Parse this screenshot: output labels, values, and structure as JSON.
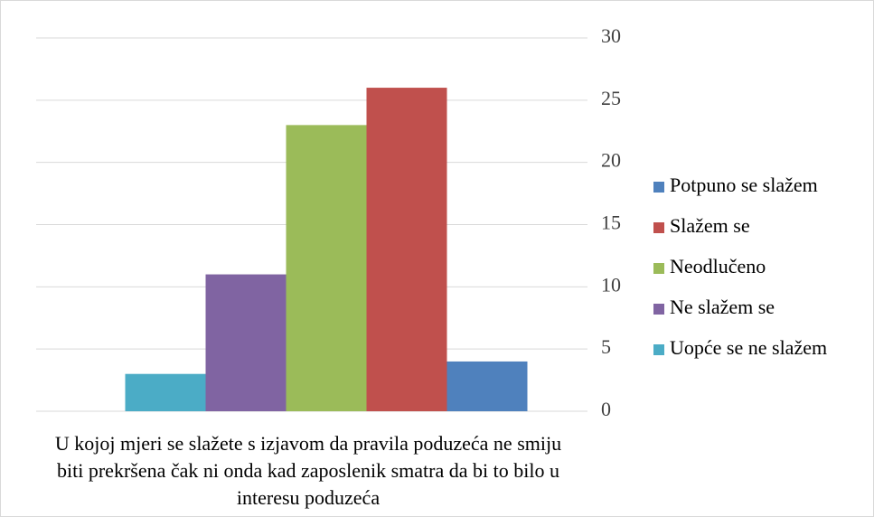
{
  "chart_data": {
    "type": "bar",
    "categories": [
      "U kojoj mjeri se slažete s izjavom da pravila poduzeća ne smiju biti prekršena čak ni onda kad zaposlenik smatra da bi to bilo u interesu poduzeća"
    ],
    "series": [
      {
        "name": "Potpuno se slažem",
        "color": "#4f81bd",
        "values": [
          4
        ]
      },
      {
        "name": "Slažem se",
        "color": "#c0504d",
        "values": [
          26
        ]
      },
      {
        "name": "Neodlučeno",
        "color": "#9bbb59",
        "values": [
          23
        ]
      },
      {
        "name": "Ne slažem se",
        "color": "#8064a2",
        "values": [
          11
        ]
      },
      {
        "name": "Uopće se ne slažem",
        "color": "#4bacc6",
        "values": [
          3
        ]
      }
    ],
    "ylim": [
      0,
      30
    ],
    "yticks": [
      0,
      5,
      10,
      15,
      20,
      25,
      30
    ],
    "grid": true,
    "legend": "right"
  }
}
